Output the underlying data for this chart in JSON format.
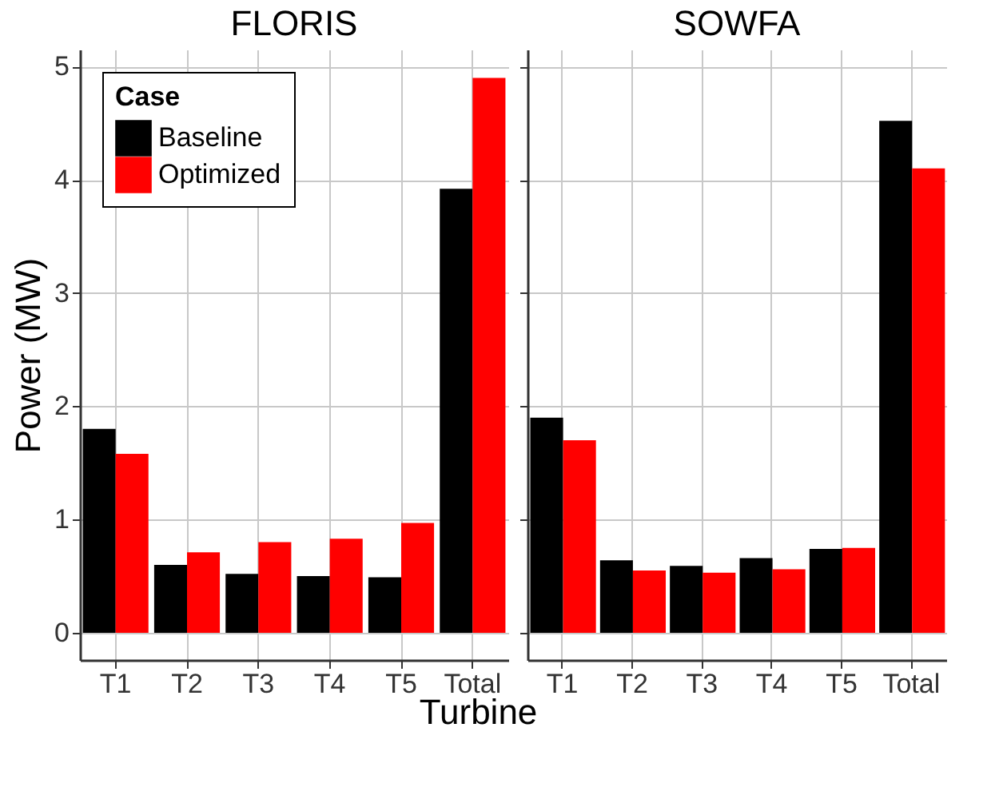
{
  "chart_data": [
    {
      "type": "bar",
      "title": "FLORIS",
      "xlabel": "Turbine",
      "ylabel": "Power (MW)",
      "legend_title": "Case",
      "categories": [
        "T1",
        "T2",
        "T3",
        "T4",
        "T5",
        "Total"
      ],
      "series": [
        {
          "name": "Baseline",
          "color": "#000000",
          "values": [
            1.8,
            0.6,
            0.52,
            0.5,
            0.49,
            3.92
          ]
        },
        {
          "name": "Optimized",
          "color": "#ff0000",
          "values": [
            1.58,
            0.71,
            0.8,
            0.83,
            0.97,
            4.9
          ]
        }
      ],
      "ylim": [
        -0.24,
        5.15
      ],
      "yticks": [
        0,
        1,
        2,
        3,
        4,
        5
      ],
      "grid": true,
      "legend": "top left"
    },
    {
      "type": "bar",
      "title": "SOWFA",
      "categories": [
        "T1",
        "T2",
        "T3",
        "T4",
        "T5",
        "Total"
      ],
      "series": [
        {
          "name": "Baseline",
          "color": "#000000",
          "values": [
            1.9,
            0.64,
            0.59,
            0.66,
            0.74,
            4.52
          ]
        },
        {
          "name": "Optimized",
          "color": "#ff0000",
          "values": [
            1.7,
            0.55,
            0.53,
            0.56,
            0.75,
            4.1
          ]
        }
      ],
      "ylim": [
        -0.24,
        5.15
      ],
      "yticks": [
        0,
        1,
        2,
        3,
        4,
        5
      ],
      "grid": true,
      "tick_labels": "x"
    }
  ]
}
